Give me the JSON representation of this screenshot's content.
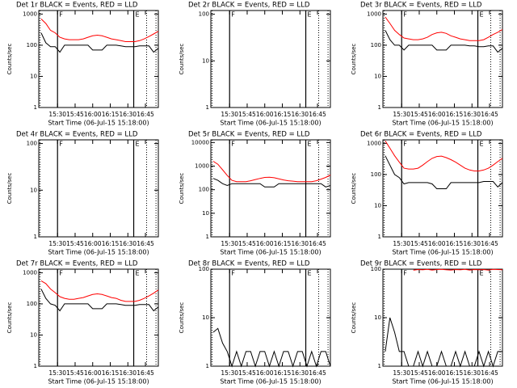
{
  "chart_data": [
    {
      "type": "line",
      "title": "Det 1r BLACK = Events, RED = LLD",
      "xlabel": "Start Time (06-Jul-15 15:18:00)",
      "ylabel": "Counts/sec",
      "log_y": true,
      "x": [
        "15:16",
        "15:20",
        "15:24",
        "15:28",
        "15:32",
        "15:36",
        "15:40",
        "15:44",
        "15:48",
        "15:52",
        "15:56",
        "16:00",
        "16:04",
        "16:08",
        "16:12",
        "16:16",
        "16:20",
        "16:24",
        "16:28",
        "16:32",
        "16:36",
        "16:40",
        "16:44",
        "16:48",
        "16:52",
        "16:56"
      ],
      "xlim": [
        "15:14",
        "16:56"
      ],
      "xticks": [
        "15:30",
        "15:45",
        "16:00",
        "16:15",
        "16:30",
        "16:45"
      ],
      "ylim": [
        1,
        1300
      ],
      "yticks": [
        1,
        10,
        100,
        1000
      ],
      "series": [
        {
          "color": "#000000",
          "values": [
            250,
            120,
            90,
            90,
            60,
            100,
            100,
            100,
            100,
            100,
            100,
            70,
            70,
            70,
            100,
            100,
            100,
            95,
            90,
            90,
            90,
            95,
            95,
            95,
            60,
            80
          ]
        },
        {
          "color": "#ff0000",
          "values": [
            700,
            500,
            300,
            250,
            180,
            160,
            150,
            150,
            150,
            160,
            180,
            200,
            210,
            200,
            180,
            160,
            150,
            140,
            130,
            130,
            130,
            140,
            160,
            190,
            230,
            280
          ]
        }
      ],
      "vlines": [
        {
          "x": "15:30",
          "label": "F"
        },
        {
          "x": "16:35",
          "label": "E"
        }
      ],
      "dotted": [
        "15:15",
        "16:46",
        "16:54"
      ]
    },
    {
      "type": "line",
      "title": "Det 2r BLACK = Events, RED = LLD",
      "xlabel": "Start Time (06-Jul-15 15:18:00)",
      "ylabel": "Counts/sec",
      "log_y": true,
      "xlim": [
        "15:14",
        "16:56"
      ],
      "xticks": [
        "15:30",
        "15:45",
        "16:00",
        "16:15",
        "16:30",
        "16:45"
      ],
      "ylim": [
        1,
        120
      ],
      "yticks": [
        1,
        10,
        100
      ],
      "vlines": [
        {
          "x": "15:30",
          "label": "F"
        },
        {
          "x": "16:35",
          "label": "E"
        }
      ],
      "dotted": [
        "15:15",
        "16:46",
        "16:54"
      ]
    },
    {
      "type": "line",
      "title": "Det 3r BLACK = Events, RED = LLD",
      "xlabel": "Start Time (06-Jul-15 15:18:00)",
      "ylabel": "Counts/sec",
      "log_y": true,
      "x": [
        "15:16",
        "15:20",
        "15:24",
        "15:28",
        "15:32",
        "15:36",
        "15:40",
        "15:44",
        "15:48",
        "15:52",
        "15:56",
        "16:00",
        "16:04",
        "16:08",
        "16:12",
        "16:16",
        "16:20",
        "16:24",
        "16:28",
        "16:32",
        "16:36",
        "16:40",
        "16:44",
        "16:48",
        "16:52",
        "16:56"
      ],
      "xlim": [
        "15:14",
        "16:56"
      ],
      "xticks": [
        "15:30",
        "15:45",
        "16:00",
        "16:15",
        "16:30",
        "16:45"
      ],
      "ylim": [
        1,
        1300
      ],
      "yticks": [
        1,
        10,
        100,
        1000
      ],
      "series": [
        {
          "color": "#000000",
          "values": [
            300,
            150,
            100,
            100,
            70,
            100,
            100,
            100,
            100,
            100,
            100,
            70,
            70,
            70,
            100,
            100,
            100,
            100,
            95,
            95,
            90,
            90,
            95,
            95,
            60,
            80
          ]
        },
        {
          "color": "#ff0000",
          "values": [
            800,
            500,
            300,
            220,
            170,
            160,
            150,
            150,
            160,
            180,
            220,
            250,
            260,
            240,
            200,
            180,
            160,
            150,
            140,
            140,
            140,
            150,
            180,
            220,
            260,
            320
          ]
        }
      ],
      "vlines": [
        {
          "x": "15:30",
          "label": "F"
        },
        {
          "x": "16:35",
          "label": "E"
        }
      ],
      "dotted": [
        "15:15",
        "16:46",
        "16:54"
      ]
    },
    {
      "type": "line",
      "title": "Det 4r BLACK = Events, RED = LLD",
      "xlabel": "Start Time (06-Jul-15 15:18:00)",
      "ylabel": "Counts/sec",
      "log_y": true,
      "xlim": [
        "15:14",
        "16:56"
      ],
      "xticks": [
        "15:30",
        "15:45",
        "16:00",
        "16:15",
        "16:30",
        "16:45"
      ],
      "ylim": [
        1,
        120
      ],
      "yticks": [
        1,
        10,
        100
      ],
      "vlines": [
        {
          "x": "15:30",
          "label": "F"
        },
        {
          "x": "16:35",
          "label": "E"
        }
      ],
      "dotted": [
        "15:15",
        "16:46",
        "16:54"
      ]
    },
    {
      "type": "line",
      "title": "Det 5r BLACK = Events, RED = LLD",
      "xlabel": "Start Time (06-Jul-15 15:18:00)",
      "ylabel": "Counts/sec",
      "log_y": true,
      "x": [
        "15:16",
        "15:20",
        "15:24",
        "15:28",
        "15:32",
        "15:36",
        "15:40",
        "15:44",
        "15:48",
        "15:52",
        "15:56",
        "16:00",
        "16:04",
        "16:08",
        "16:12",
        "16:16",
        "16:20",
        "16:24",
        "16:28",
        "16:32",
        "16:36",
        "16:40",
        "16:44",
        "16:48",
        "16:52",
        "16:56"
      ],
      "xlim": [
        "15:14",
        "16:56"
      ],
      "xticks": [
        "15:30",
        "15:45",
        "16:00",
        "16:15",
        "16:30",
        "16:45"
      ],
      "ylim": [
        1,
        13000
      ],
      "yticks": [
        1,
        10,
        100,
        1000,
        10000
      ],
      "series": [
        {
          "color": "#000000",
          "values": [
            300,
            250,
            180,
            150,
            180,
            180,
            180,
            180,
            180,
            180,
            180,
            130,
            130,
            130,
            180,
            180,
            180,
            180,
            180,
            180,
            180,
            180,
            180,
            180,
            130,
            150
          ]
        },
        {
          "color": "#ff0000",
          "values": [
            1600,
            1200,
            700,
            400,
            250,
            220,
            220,
            220,
            240,
            270,
            300,
            330,
            340,
            320,
            290,
            260,
            240,
            230,
            220,
            220,
            220,
            220,
            240,
            280,
            330,
            420
          ]
        }
      ],
      "vlines": [
        {
          "x": "15:30",
          "label": "F"
        },
        {
          "x": "16:35",
          "label": "E"
        }
      ],
      "dotted": [
        "15:15",
        "16:46",
        "16:54"
      ]
    },
    {
      "type": "line",
      "title": "Det 6r BLACK = Events, RED = LLD",
      "xlabel": "Start Time (06-Jul-15 15:18:00)",
      "ylabel": "Counts/sec",
      "log_y": true,
      "x": [
        "15:16",
        "15:20",
        "15:24",
        "15:28",
        "15:32",
        "15:36",
        "15:40",
        "15:44",
        "15:48",
        "15:52",
        "15:56",
        "16:00",
        "16:04",
        "16:08",
        "16:12",
        "16:16",
        "16:20",
        "16:24",
        "16:28",
        "16:32",
        "16:36",
        "16:40",
        "16:44",
        "16:48",
        "16:52",
        "16:56"
      ],
      "xlim": [
        "15:14",
        "16:56"
      ],
      "xticks": [
        "15:30",
        "15:45",
        "16:00",
        "16:15",
        "16:30",
        "16:45"
      ],
      "ylim": [
        1,
        1300
      ],
      "yticks": [
        1,
        10,
        100,
        1000
      ],
      "series": [
        {
          "color": "#000000",
          "values": [
            400,
            200,
            100,
            80,
            50,
            55,
            55,
            55,
            55,
            55,
            50,
            35,
            35,
            35,
            55,
            55,
            55,
            55,
            55,
            55,
            55,
            60,
            60,
            60,
            40,
            55
          ]
        },
        {
          "color": "#ff0000",
          "values": [
            1200,
            700,
            400,
            250,
            160,
            150,
            150,
            160,
            200,
            260,
            330,
            380,
            390,
            350,
            300,
            250,
            200,
            160,
            140,
            130,
            130,
            140,
            160,
            200,
            260,
            330
          ]
        }
      ],
      "vlines": [
        {
          "x": "15:30",
          "label": "F"
        },
        {
          "x": "16:35",
          "label": "E"
        }
      ],
      "dotted": [
        "15:15",
        "16:46",
        "16:54"
      ]
    },
    {
      "type": "line",
      "title": "Det 7r BLACK = Events, RED = LLD",
      "xlabel": "Start Time (06-Jul-15 15:18:00)",
      "ylabel": "Counts/sec",
      "log_y": true,
      "x": [
        "15:16",
        "15:20",
        "15:24",
        "15:28",
        "15:32",
        "15:36",
        "15:40",
        "15:44",
        "15:48",
        "15:52",
        "15:56",
        "16:00",
        "16:04",
        "16:08",
        "16:12",
        "16:16",
        "16:20",
        "16:24",
        "16:28",
        "16:32",
        "16:36",
        "16:40",
        "16:44",
        "16:48",
        "16:52",
        "16:56"
      ],
      "xlim": [
        "15:14",
        "16:56"
      ],
      "xticks": [
        "15:30",
        "15:45",
        "16:00",
        "16:15",
        "16:30",
        "16:45"
      ],
      "ylim": [
        1,
        1300
      ],
      "yticks": [
        1,
        10,
        100,
        1000
      ],
      "series": [
        {
          "color": "#000000",
          "values": [
            300,
            150,
            100,
            90,
            60,
            100,
            100,
            100,
            100,
            100,
            100,
            70,
            70,
            70,
            100,
            100,
            100,
            95,
            90,
            90,
            90,
            95,
            95,
            95,
            60,
            80
          ]
        },
        {
          "color": "#ff0000",
          "values": [
            550,
            450,
            300,
            230,
            170,
            150,
            140,
            140,
            150,
            160,
            180,
            200,
            210,
            200,
            180,
            160,
            150,
            130,
            120,
            120,
            120,
            130,
            150,
            180,
            220,
            280
          ]
        }
      ],
      "vlines": [
        {
          "x": "15:30",
          "label": "F"
        },
        {
          "x": "16:35",
          "label": "E"
        }
      ],
      "dotted": [
        "15:15",
        "16:46",
        "16:54"
      ]
    },
    {
      "type": "line",
      "title": "Det 8r BLACK = Events, RED = LLD",
      "xlabel": "Start Time (06-Jul-15 15:18:00)",
      "ylabel": "Counts/sec",
      "log_y": true,
      "x": [
        "15:16",
        "15:20",
        "15:24",
        "15:28",
        "15:32",
        "15:36",
        "15:40",
        "15:44",
        "15:48",
        "15:52",
        "15:56",
        "16:00",
        "16:04",
        "16:08",
        "16:12",
        "16:16",
        "16:20",
        "16:24",
        "16:28",
        "16:32",
        "16:36",
        "16:40",
        "16:44",
        "16:48",
        "16:52",
        "16:56"
      ],
      "xlim": [
        "15:14",
        "16:56"
      ],
      "xticks": [
        "15:30",
        "15:45",
        "16:00",
        "16:15",
        "16:30",
        "16:45"
      ],
      "ylim": [
        1,
        100
      ],
      "yticks": [
        1,
        10,
        100
      ],
      "series": [
        {
          "color": "#000000",
          "values": [
            5,
            6,
            3,
            2,
            1,
            2,
            1,
            2,
            2,
            1,
            2,
            2,
            1,
            2,
            1,
            2,
            2,
            1,
            2,
            2,
            1,
            2,
            1,
            2,
            2,
            1
          ]
        }
      ],
      "vlines": [
        {
          "x": "15:30",
          "label": "F"
        },
        {
          "x": "16:35",
          "label": "E"
        }
      ],
      "dotted": [
        "15:15",
        "16:46",
        "16:54"
      ]
    },
    {
      "type": "line",
      "title": "Det 9r BLACK = Events, RED = LLD",
      "xlabel": "Start Time (06-Jul-15 15:18:00)",
      "ylabel": "Counts/sec",
      "log_y": true,
      "x": [
        "15:16",
        "15:20",
        "15:24",
        "15:28",
        "15:32",
        "15:36",
        "15:40",
        "15:44",
        "15:48",
        "15:52",
        "15:56",
        "16:00",
        "16:04",
        "16:08",
        "16:12",
        "16:16",
        "16:20",
        "16:24",
        "16:28",
        "16:32",
        "16:36",
        "16:40",
        "16:44",
        "16:48",
        "16:52",
        "16:56"
      ],
      "xlim": [
        "15:14",
        "16:56"
      ],
      "xticks": [
        "15:30",
        "15:45",
        "16:00",
        "16:15",
        "16:30",
        "16:45"
      ],
      "ylim": [
        1,
        100
      ],
      "yticks": [
        1,
        10,
        100
      ],
      "series": [
        {
          "color": "#000000",
          "values": [
            2,
            10,
            5,
            2,
            2,
            1,
            1,
            2,
            1,
            2,
            1,
            1,
            2,
            1,
            1,
            2,
            1,
            2,
            1,
            1,
            2,
            1,
            2,
            1,
            2,
            2
          ]
        },
        {
          "color": "#ff0000",
          "values": [
            null,
            null,
            null,
            null,
            null,
            null,
            95,
            98,
            97,
            99,
            96,
            98,
            99,
            97,
            96,
            98,
            97,
            99,
            96,
            98,
            97,
            98,
            96,
            99,
            98,
            97
          ]
        }
      ],
      "vlines": [
        {
          "x": "15:30",
          "label": "F"
        },
        {
          "x": "16:35",
          "label": "E"
        }
      ],
      "dotted": [
        "15:15",
        "16:46",
        "16:54"
      ]
    }
  ]
}
